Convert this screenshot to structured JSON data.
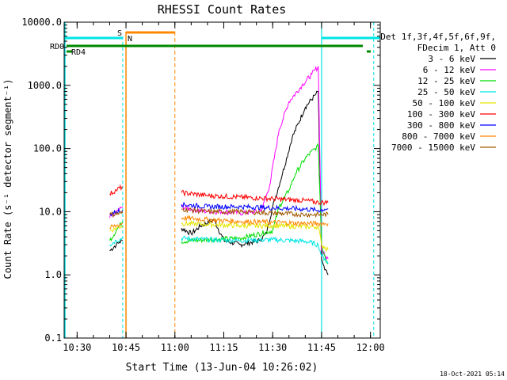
{
  "chart_data": {
    "type": "line",
    "title": "RHESSI Count Rates",
    "xlabel": "Start Time (13-Jun-04 10:26:02)",
    "ylabel": "Count Rate (s⁻¹ detector segment⁻¹)",
    "ylog": true,
    "ylim": [
      0.1,
      10000
    ],
    "xlim": [
      "10:26:02",
      "12:03"
    ],
    "x_tick_labels": [
      "10:30",
      "10:45",
      "11:00",
      "11:15",
      "11:30",
      "11:45",
      "12:00"
    ],
    "y_tick_labels": [
      "0.1",
      "1.0",
      "10.0",
      "100.0",
      "1000.0",
      "10000.0"
    ],
    "legend_header": [
      "Det 1f,3f,4f,5f,6f,9f,",
      "FDecim 1, Att 0"
    ],
    "legend_position": "right",
    "timestamp": "18-Oct-2021 05:14",
    "series": [
      {
        "name": "3 - 6 keV",
        "color": "#000000",
        "x": [
          "10:40",
          "10:42",
          "10:43",
          "10:44",
          "11:02",
          "11:05",
          "11:08",
          "11:12",
          "11:15",
          "11:20",
          "11:26",
          "11:28",
          "11:30",
          "11:33",
          "11:36",
          "11:40",
          "11:43",
          "11:44",
          "11:45",
          "11:46",
          "11:47"
        ],
        "y": [
          2.4,
          3.0,
          3.3,
          3.5,
          5.5,
          4.5,
          6.0,
          7.5,
          3.5,
          3.0,
          3.5,
          4.5,
          12,
          40,
          150,
          450,
          700,
          800,
          1.8,
          1.2,
          1.0
        ]
      },
      {
        "name": "6 - 12 keV",
        "color": "#ff00ff",
        "x": [
          "10:40",
          "10:42",
          "10:43",
          "10:44",
          "11:02",
          "11:05",
          "11:10",
          "11:15",
          "11:20",
          "11:26",
          "11:27",
          "11:29",
          "11:32",
          "11:35",
          "11:39",
          "11:42",
          "11:44",
          "11:45",
          "11:46",
          "11:47"
        ],
        "y": [
          8,
          10,
          11,
          12,
          12,
          11,
          10,
          10,
          9.5,
          10,
          12,
          25,
          200,
          550,
          1000,
          1500,
          2000,
          2.5,
          2.0,
          1.8
        ]
      },
      {
        "name": "12 - 25 keV",
        "color": "#00dd00",
        "x": [
          "10:40",
          "10:42",
          "10:43",
          "10:44",
          "11:02",
          "11:10",
          "11:20",
          "11:30",
          "11:32",
          "11:35",
          "11:37",
          "11:40",
          "11:43",
          "11:44",
          "11:45",
          "11:46",
          "11:47"
        ],
        "y": [
          3.5,
          5,
          6,
          7,
          3.4,
          3.6,
          3.8,
          5,
          12,
          22,
          40,
          70,
          100,
          110,
          3.0,
          2.0,
          1.5
        ]
      },
      {
        "name": "25 - 50 keV",
        "color": "#00e5e5",
        "x": [
          "10:40",
          "10:42",
          "10:44",
          "11:02",
          "11:10",
          "11:20",
          "11:30",
          "11:40",
          "11:44",
          "11:45",
          "11:46",
          "11:47"
        ],
        "y": [
          3.0,
          3.5,
          3.8,
          3.8,
          3.6,
          3.5,
          3.6,
          3.4,
          3.0,
          2.0,
          1.8,
          1.5
        ]
      },
      {
        "name": "50 - 100 keV",
        "color": "#e5e500",
        "x": [
          "10:40",
          "10:42",
          "10:44",
          "11:02",
          "11:10",
          "11:20",
          "11:30",
          "11:40",
          "11:44",
          "11:45",
          "11:47"
        ],
        "y": [
          5.0,
          5.5,
          6.0,
          6.5,
          6.3,
          6.0,
          6.0,
          5.8,
          5.8,
          3.0,
          2.5
        ]
      },
      {
        "name": "100 - 300 keV",
        "color": "#ff0000",
        "x": [
          "10:40",
          "10:42",
          "10:44",
          "11:02",
          "11:10",
          "11:20",
          "11:30",
          "11:40",
          "11:44",
          "11:46",
          "11:47"
        ],
        "y": [
          19,
          22,
          25,
          20,
          18,
          17,
          16,
          15,
          14,
          14,
          14
        ]
      },
      {
        "name": "300 - 800 keV",
        "color": "#0000ff",
        "x": [
          "10:40",
          "10:42",
          "10:44",
          "11:02",
          "11:10",
          "11:20",
          "11:30",
          "11:40",
          "11:44",
          "11:46",
          "11:47"
        ],
        "y": [
          9,
          10,
          10.5,
          13,
          12,
          12,
          11.5,
          11,
          10.5,
          11,
          11
        ]
      },
      {
        "name": "800 - 7000 keV",
        "color": "#ff8800",
        "x": [
          "10:40",
          "10:42",
          "10:44",
          "11:02",
          "11:10",
          "11:20",
          "11:30",
          "11:40",
          "11:44",
          "11:46",
          "11:47"
        ],
        "y": [
          5.5,
          6,
          6.5,
          8,
          7.5,
          7,
          6.8,
          6.5,
          6.5,
          6.5,
          6.5
        ]
      },
      {
        "name": "7000 - 15000 keV",
        "color": "#a05a00",
        "x": [
          "10:40",
          "10:44",
          "11:02",
          "11:10",
          "11:20",
          "11:30",
          "11:40",
          "11:44",
          "11:47"
        ],
        "y": [
          9,
          9.5,
          11,
          10,
          10,
          9.5,
          9,
          9,
          9
        ]
      }
    ],
    "flags": [
      {
        "label": "S",
        "color": "#ff8800",
        "start": "10:45",
        "end": "11:00"
      },
      {
        "label": "N",
        "color": "#00e5e5",
        "start": "",
        "end": ""
      },
      {
        "label": "RD0",
        "color": "#008800",
        "start": "",
        "end": ""
      },
      {
        "label": "RD4",
        "color": "#008800",
        "start": "",
        "end": ""
      }
    ],
    "night_intervals": [
      {
        "start": "10:26:02",
        "end": "10:44"
      },
      {
        "start": "11:45",
        "end": "12:01"
      }
    ],
    "saa_interval": {
      "start": "10:45",
      "end": "11:00"
    }
  },
  "colors": {
    "cyan": "#00e5e5",
    "orange": "#ff8800",
    "green": "#008800",
    "axis": "#000000"
  }
}
